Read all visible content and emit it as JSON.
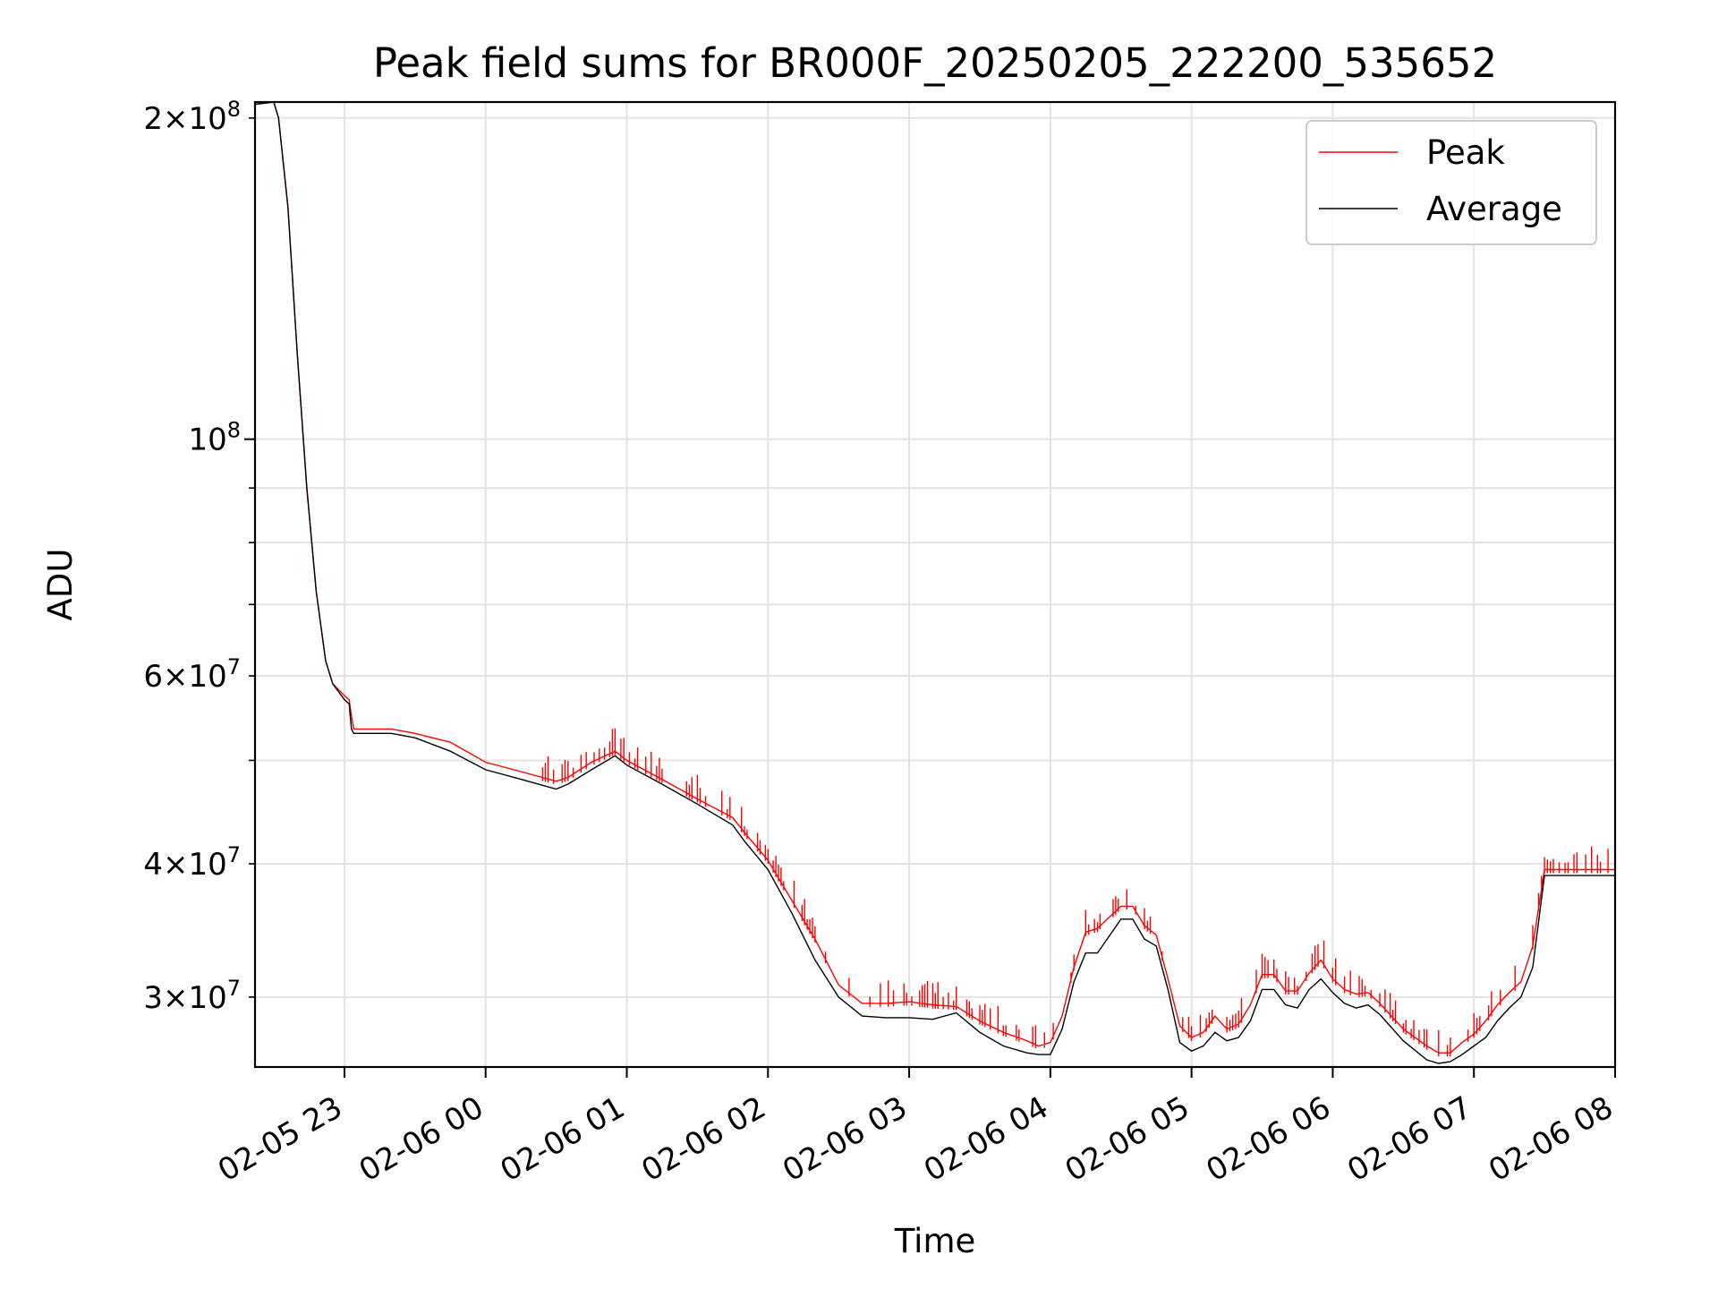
{
  "chart_data": {
    "type": "line",
    "title": "Peak field sums for BR000F_20250205_222200_535652",
    "xlabel": "Time",
    "ylabel": "ADU",
    "yscale": "log",
    "grid": true,
    "legend_position": "top-right",
    "xlim": [
      "2025-02-05 22:22",
      "2025-02-06 08:00"
    ],
    "ylim": [
      25800000,
      207000000
    ],
    "x_ticks": [
      {
        "value": "2025-02-05 23:00",
        "label": "02-05 23"
      },
      {
        "value": "2025-02-06 00:00",
        "label": "02-06 00"
      },
      {
        "value": "2025-02-06 01:00",
        "label": "02-06 01"
      },
      {
        "value": "2025-02-06 02:00",
        "label": "02-06 02"
      },
      {
        "value": "2025-02-06 03:00",
        "label": "02-06 03"
      },
      {
        "value": "2025-02-06 04:00",
        "label": "02-06 04"
      },
      {
        "value": "2025-02-06 05:00",
        "label": "02-06 05"
      },
      {
        "value": "2025-02-06 06:00",
        "label": "02-06 06"
      },
      {
        "value": "2025-02-06 07:00",
        "label": "02-06 07"
      },
      {
        "value": "2025-02-06 08:00",
        "label": "02-06 08"
      }
    ],
    "y_major_ticks": [
      {
        "value": 100000000,
        "base": "10",
        "exp": "8"
      }
    ],
    "y_minor_ticks": [
      {
        "value": 30000000,
        "mant": "3",
        "base": "10",
        "exp": "7",
        "labeled": true
      },
      {
        "value": 40000000,
        "mant": "4",
        "base": "10",
        "exp": "7",
        "labeled": true
      },
      {
        "value": 50000000,
        "labeled": false
      },
      {
        "value": 60000000,
        "mant": "6",
        "base": "10",
        "exp": "7",
        "labeled": true
      },
      {
        "value": 70000000,
        "labeled": false
      },
      {
        "value": 80000000,
        "labeled": false
      },
      {
        "value": 90000000,
        "labeled": false
      },
      {
        "value": 200000000,
        "mant": "2",
        "base": "10",
        "exp": "8",
        "labeled": true
      }
    ],
    "series": [
      {
        "name": "Average",
        "color": "#000000",
        "x": [
          "2025-02-05 22:22",
          "2025-02-05 22:30",
          "2025-02-05 22:32",
          "2025-02-05 22:36",
          "2025-02-05 22:40",
          "2025-02-05 22:44",
          "2025-02-05 22:48",
          "2025-02-05 22:52",
          "2025-02-05 22:55",
          "2025-02-05 23:00",
          "2025-02-05 23:02",
          "2025-02-05 23:03",
          "2025-02-05 23:04",
          "2025-02-05 23:10",
          "2025-02-05 23:20",
          "2025-02-05 23:30",
          "2025-02-05 23:45",
          "2025-02-06 00:00",
          "2025-02-06 00:15",
          "2025-02-06 00:30",
          "2025-02-06 00:35",
          "2025-02-06 00:45",
          "2025-02-06 00:55",
          "2025-02-06 01:00",
          "2025-02-06 01:15",
          "2025-02-06 01:30",
          "2025-02-06 01:45",
          "2025-02-06 01:50",
          "2025-02-06 02:00",
          "2025-02-06 02:10",
          "2025-02-06 02:20",
          "2025-02-06 02:30",
          "2025-02-06 02:40",
          "2025-02-06 02:50",
          "2025-02-06 03:00",
          "2025-02-06 03:10",
          "2025-02-06 03:20",
          "2025-02-06 03:30",
          "2025-02-06 03:40",
          "2025-02-06 03:50",
          "2025-02-06 03:55",
          "2025-02-06 04:00",
          "2025-02-06 04:05",
          "2025-02-06 04:10",
          "2025-02-06 04:15",
          "2025-02-06 04:20",
          "2025-02-06 04:30",
          "2025-02-06 04:35",
          "2025-02-06 04:40",
          "2025-02-06 04:45",
          "2025-02-06 04:50",
          "2025-02-06 04:55",
          "2025-02-06 05:00",
          "2025-02-06 05:05",
          "2025-02-06 05:10",
          "2025-02-06 05:15",
          "2025-02-06 05:20",
          "2025-02-06 05:25",
          "2025-02-06 05:30",
          "2025-02-06 05:35",
          "2025-02-06 05:40",
          "2025-02-06 05:45",
          "2025-02-06 05:50",
          "2025-02-06 05:55",
          "2025-02-06 06:00",
          "2025-02-06 06:05",
          "2025-02-06 06:10",
          "2025-02-06 06:15",
          "2025-02-06 06:20",
          "2025-02-06 06:30",
          "2025-02-06 06:40",
          "2025-02-06 06:45",
          "2025-02-06 06:50",
          "2025-02-06 06:55",
          "2025-02-06 07:00",
          "2025-02-06 07:05",
          "2025-02-06 07:10",
          "2025-02-06 07:15",
          "2025-02-06 07:20",
          "2025-02-06 07:25",
          "2025-02-06 07:30",
          "2025-02-06 07:35",
          "2025-02-06 07:40",
          "2025-02-06 07:45",
          "2025-02-06 07:50",
          "2025-02-06 07:55",
          "2025-02-06 07:58",
          "2025-02-06 08:00"
        ],
        "y": [
          206000000,
          207000000,
          200000000,
          165000000,
          120000000,
          90000000,
          72000000,
          62000000,
          59000000,
          57000000,
          56500000,
          53500000,
          53000000,
          53000000,
          53000000,
          52500000,
          51000000,
          49000000,
          48000000,
          47000000,
          47500000,
          49000000,
          50500000,
          49500000,
          47500000,
          45500000,
          43500000,
          42000000,
          39500000,
          36000000,
          32500000,
          30000000,
          28800000,
          28700000,
          28700000,
          28600000,
          29000000,
          27800000,
          27000000,
          26600000,
          26500000,
          26500000,
          28000000,
          31000000,
          33000000,
          33000000,
          35500000,
          35500000,
          34000000,
          33500000,
          30500000,
          27200000,
          26700000,
          27000000,
          27800000,
          27300000,
          27500000,
          28500000,
          30500000,
          30500000,
          29500000,
          29300000,
          30500000,
          31200000,
          30300000,
          29600000,
          29300000,
          29500000,
          28900000,
          27300000,
          26200000,
          26000000,
          26100000,
          26500000,
          27000000,
          27500000,
          28500000,
          29300000,
          30000000,
          32000000,
          39000000,
          39000000,
          39000000,
          39000000,
          39000000,
          39000000,
          39000000,
          39000000
        ]
      },
      {
        "name": "Peak",
        "color": "#ff0000",
        "x": [
          "2025-02-05 22:22",
          "2025-02-05 22:30",
          "2025-02-05 22:32",
          "2025-02-05 22:36",
          "2025-02-05 22:40",
          "2025-02-05 22:44",
          "2025-02-05 22:48",
          "2025-02-05 22:52",
          "2025-02-05 22:55",
          "2025-02-05 23:00",
          "2025-02-05 23:02",
          "2025-02-05 23:03",
          "2025-02-05 23:04",
          "2025-02-05 23:10",
          "2025-02-05 23:20",
          "2025-02-05 23:30",
          "2025-02-05 23:45",
          "2025-02-06 00:00",
          "2025-02-06 00:15",
          "2025-02-06 00:30",
          "2025-02-06 00:35",
          "2025-02-06 00:45",
          "2025-02-06 00:55",
          "2025-02-06 01:00",
          "2025-02-06 01:15",
          "2025-02-06 01:30",
          "2025-02-06 01:45",
          "2025-02-06 01:50",
          "2025-02-06 02:00",
          "2025-02-06 02:10",
          "2025-02-06 02:20",
          "2025-02-06 02:30",
          "2025-02-06 02:40",
          "2025-02-06 02:50",
          "2025-02-06 03:00",
          "2025-02-06 03:10",
          "2025-02-06 03:20",
          "2025-02-06 03:30",
          "2025-02-06 03:40",
          "2025-02-06 03:50",
          "2025-02-06 03:55",
          "2025-02-06 04:00",
          "2025-02-06 04:05",
          "2025-02-06 04:10",
          "2025-02-06 04:15",
          "2025-02-06 04:20",
          "2025-02-06 04:30",
          "2025-02-06 04:35",
          "2025-02-06 04:40",
          "2025-02-06 04:45",
          "2025-02-06 04:50",
          "2025-02-06 04:55",
          "2025-02-06 05:00",
          "2025-02-06 05:05",
          "2025-02-06 05:10",
          "2025-02-06 05:15",
          "2025-02-06 05:20",
          "2025-02-06 05:25",
          "2025-02-06 05:30",
          "2025-02-06 05:35",
          "2025-02-06 05:40",
          "2025-02-06 05:45",
          "2025-02-06 05:50",
          "2025-02-06 05:55",
          "2025-02-06 06:00",
          "2025-02-06 06:05",
          "2025-02-06 06:10",
          "2025-02-06 06:15",
          "2025-02-06 06:20",
          "2025-02-06 06:30",
          "2025-02-06 06:40",
          "2025-02-06 06:45",
          "2025-02-06 06:50",
          "2025-02-06 06:55",
          "2025-02-06 07:00",
          "2025-02-06 07:05",
          "2025-02-06 07:10",
          "2025-02-06 07:15",
          "2025-02-06 07:20",
          "2025-02-06 07:25",
          "2025-02-06 07:30",
          "2025-02-06 07:35",
          "2025-02-06 07:40",
          "2025-02-06 07:45",
          "2025-02-06 07:50",
          "2025-02-06 07:55",
          "2025-02-06 07:58",
          "2025-02-06 08:00"
        ],
        "y": [
          206000000,
          207000000,
          200000000,
          165000000,
          120000000,
          90000000,
          72000000,
          62000000,
          59000000,
          57500000,
          57000000,
          55000000,
          53500000,
          53500000,
          53500000,
          53000000,
          52000000,
          49800000,
          48800000,
          47800000,
          48200000,
          49800000,
          51000000,
          50000000,
          48000000,
          46000000,
          44200000,
          42800000,
          40300000,
          37000000,
          34000000,
          30800000,
          29600000,
          29600000,
          29700000,
          29500000,
          29400000,
          28500000,
          27800000,
          27300000,
          27000000,
          27200000,
          28800000,
          32000000,
          34500000,
          34800000,
          36500000,
          36500000,
          35000000,
          34300000,
          31200000,
          28200000,
          27500000,
          27800000,
          28800000,
          28000000,
          28300000,
          29500000,
          31500000,
          31500000,
          30400000,
          30400000,
          31600000,
          32500000,
          31200000,
          30500000,
          30200000,
          30300000,
          29600000,
          28000000,
          27000000,
          26600000,
          26600000,
          27200000,
          27700000,
          28500000,
          29500000,
          30300000,
          31000000,
          33500000,
          39500000,
          39500000,
          39500000,
          39500000,
          39500000,
          39500000,
          39500000,
          39500000
        ]
      }
    ]
  }
}
